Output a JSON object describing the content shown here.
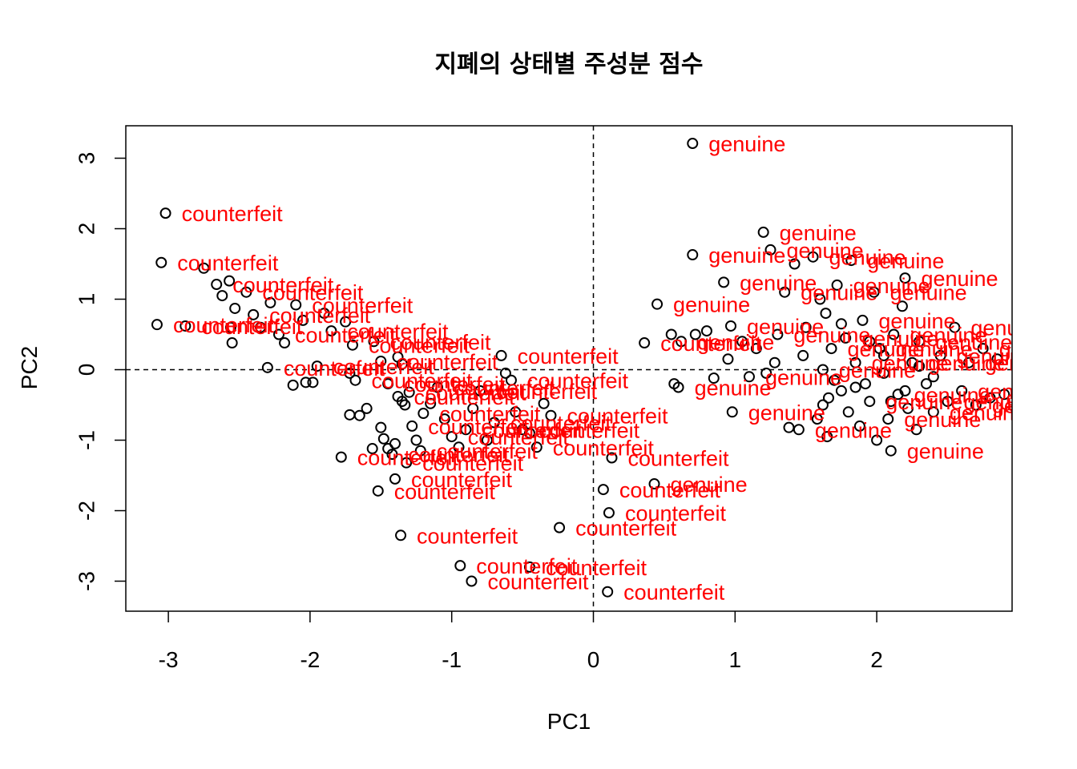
{
  "chart_data": {
    "type": "scatter",
    "title": "지폐의 상태별 주성분 점수",
    "xlabel": "PC1",
    "ylabel": "PC2",
    "xlim": [
      -3.3,
      2.95
    ],
    "ylim": [
      -3.45,
      3.45
    ],
    "xticks": [
      "-3",
      "-2",
      "-1",
      "0",
      "1",
      "2"
    ],
    "yticks": [
      "-3",
      "-2",
      "-1",
      "0",
      "1",
      "2",
      "3"
    ],
    "reference_lines": {
      "x": 0,
      "y": 0,
      "style": "dashed"
    },
    "label_color": "#ff0000",
    "point_color": "#000000",
    "series": [
      {
        "name": "counterfeit",
        "points": [
          [
            -3.02,
            2.22
          ],
          [
            -3.05,
            1.52
          ],
          [
            -3.08,
            0.64
          ],
          [
            -2.88,
            0.62
          ],
          [
            -2.75,
            1.44
          ],
          [
            -2.66,
            1.21
          ],
          [
            -2.62,
            1.05
          ],
          [
            -2.57,
            1.26
          ],
          [
            -2.53,
            0.87
          ],
          [
            -2.56,
            0.6
          ],
          [
            -2.55,
            0.38
          ],
          [
            -2.45,
            1.1
          ],
          [
            -2.4,
            0.78
          ],
          [
            -2.35,
            0.6
          ],
          [
            -2.3,
            0.03
          ],
          [
            -2.28,
            0.95
          ],
          [
            -2.22,
            0.5
          ],
          [
            -2.18,
            0.38
          ],
          [
            -2.1,
            0.92
          ],
          [
            -2.05,
            0.7
          ],
          [
            -2.12,
            -0.22
          ],
          [
            -2.03,
            -0.18
          ],
          [
            -1.98,
            -0.18
          ],
          [
            -1.95,
            0.05
          ],
          [
            -1.9,
            0.8
          ],
          [
            -1.85,
            0.55
          ],
          [
            -1.75,
            0.68
          ],
          [
            -1.7,
            0.35
          ],
          [
            -1.72,
            -0.05
          ],
          [
            -1.68,
            -0.15
          ],
          [
            -1.72,
            -0.64
          ],
          [
            -1.65,
            -0.65
          ],
          [
            -1.6,
            -0.55
          ],
          [
            -1.55,
            0.4
          ],
          [
            -1.5,
            0.12
          ],
          [
            -1.45,
            -0.2
          ],
          [
            -1.5,
            -0.82
          ],
          [
            -1.48,
            -0.98
          ],
          [
            -1.45,
            -1.12
          ],
          [
            -1.42,
            -1.2
          ],
          [
            -1.4,
            -1.05
          ],
          [
            -1.38,
            -0.38
          ],
          [
            -1.35,
            -0.45
          ],
          [
            -1.33,
            -0.5
          ],
          [
            -1.3,
            -0.32
          ],
          [
            -1.28,
            -0.8
          ],
          [
            -1.25,
            -1.0
          ],
          [
            -1.22,
            -1.15
          ],
          [
            -1.2,
            -0.62
          ],
          [
            -1.15,
            -0.48
          ],
          [
            -1.1,
            -0.25
          ],
          [
            -1.05,
            -0.7
          ],
          [
            -1.0,
            -0.95
          ],
          [
            -0.95,
            -1.1
          ],
          [
            -0.9,
            -0.85
          ],
          [
            -0.85,
            -0.55
          ],
          [
            -0.8,
            -0.3
          ],
          [
            -0.75,
            -1.0
          ],
          [
            -0.7,
            -0.75
          ],
          [
            -0.65,
            0.2
          ],
          [
            -0.62,
            -0.05
          ],
          [
            -0.58,
            -0.15
          ],
          [
            -0.55,
            -0.6
          ],
          [
            -0.5,
            -0.85
          ],
          [
            -0.45,
            -0.9
          ],
          [
            -0.4,
            -1.1
          ],
          [
            -0.35,
            -0.48
          ],
          [
            -0.3,
            -0.65
          ],
          [
            -1.38,
            0.18
          ],
          [
            -1.35,
            0.08
          ],
          [
            -1.78,
            -1.24
          ],
          [
            -1.56,
            -1.12
          ],
          [
            -1.52,
            -1.72
          ],
          [
            -1.4,
            -1.55
          ],
          [
            -1.32,
            -1.32
          ],
          [
            -1.36,
            -2.35
          ],
          [
            -0.94,
            -2.78
          ],
          [
            -0.86,
            -3.0
          ],
          [
            -0.45,
            -2.8
          ],
          [
            -0.24,
            -2.24
          ],
          [
            0.07,
            -1.7
          ],
          [
            0.11,
            -2.03
          ],
          [
            0.13,
            -1.25
          ],
          [
            0.1,
            -3.15
          ],
          [
            0.36,
            0.38
          ]
        ],
        "labeled_points": [
          [
            -3.02,
            2.22
          ],
          [
            -3.05,
            1.52
          ],
          [
            -3.08,
            0.64
          ],
          [
            -2.88,
            0.62
          ],
          [
            -2.66,
            1.21
          ],
          [
            -2.45,
            1.1
          ],
          [
            -2.4,
            0.78
          ],
          [
            -2.22,
            0.5
          ],
          [
            -2.1,
            0.92
          ],
          [
            -1.95,
            0.05
          ],
          [
            -1.85,
            0.55
          ],
          [
            -1.7,
            0.35
          ],
          [
            -1.68,
            -0.15
          ],
          [
            -1.5,
            0.12
          ],
          [
            -1.45,
            -0.2
          ],
          [
            -1.42,
            -1.2
          ],
          [
            -1.38,
            -0.38
          ],
          [
            -1.3,
            -0.32
          ],
          [
            -1.28,
            -0.8
          ],
          [
            -1.22,
            -1.15
          ],
          [
            -1.2,
            -0.62
          ],
          [
            -1.1,
            -0.25
          ],
          [
            -1.0,
            -0.95
          ],
          [
            -0.9,
            -0.85
          ],
          [
            -0.8,
            -0.3
          ],
          [
            -0.7,
            -0.75
          ],
          [
            -0.65,
            0.2
          ],
          [
            -0.58,
            -0.15
          ],
          [
            -0.5,
            -0.85
          ],
          [
            -0.4,
            -1.1
          ],
          [
            -0.3,
            -0.65
          ],
          [
            -1.78,
            -1.24
          ],
          [
            -1.52,
            -1.72
          ],
          [
            -1.4,
            -1.55
          ],
          [
            -1.32,
            -1.32
          ],
          [
            -1.36,
            -2.35
          ],
          [
            -0.94,
            -2.78
          ],
          [
            -0.86,
            -3.0
          ],
          [
            -0.45,
            -2.8
          ],
          [
            -0.24,
            -2.24
          ],
          [
            0.07,
            -1.7
          ],
          [
            0.11,
            -2.03
          ],
          [
            0.13,
            -1.25
          ],
          [
            0.1,
            -3.15
          ],
          [
            0.36,
            0.38
          ],
          [
            -1.55,
            0.4
          ],
          [
            -2.3,
            0.03
          ]
        ]
      },
      {
        "name": "genuine",
        "points": [
          [
            0.7,
            3.21
          ],
          [
            0.7,
            1.63
          ],
          [
            0.45,
            0.93
          ],
          [
            0.55,
            0.5
          ],
          [
            0.62,
            0.4
          ],
          [
            0.6,
            -0.25
          ],
          [
            0.57,
            -0.2
          ],
          [
            0.72,
            0.5
          ],
          [
            0.8,
            0.55
          ],
          [
            0.85,
            -0.12
          ],
          [
            0.92,
            1.24
          ],
          [
            0.95,
            0.15
          ],
          [
            0.97,
            0.62
          ],
          [
            0.98,
            -0.6
          ],
          [
            1.05,
            0.4
          ],
          [
            1.1,
            -0.1
          ],
          [
            1.15,
            0.3
          ],
          [
            1.2,
            1.95
          ],
          [
            1.25,
            1.7
          ],
          [
            1.22,
            -0.05
          ],
          [
            1.28,
            0.1
          ],
          [
            1.3,
            0.5
          ],
          [
            1.35,
            1.1
          ],
          [
            1.38,
            -0.82
          ],
          [
            1.42,
            1.5
          ],
          [
            1.45,
            -0.85
          ],
          [
            1.48,
            0.2
          ],
          [
            1.5,
            0.6
          ],
          [
            1.55,
            1.6
          ],
          [
            1.58,
            -0.7
          ],
          [
            1.6,
            1.0
          ],
          [
            1.62,
            -0.5
          ],
          [
            1.62,
            0.0
          ],
          [
            1.64,
            0.8
          ],
          [
            1.65,
            -0.95
          ],
          [
            1.66,
            -0.4
          ],
          [
            1.68,
            0.3
          ],
          [
            1.7,
            -0.15
          ],
          [
            1.72,
            1.2
          ],
          [
            1.75,
            -0.3
          ],
          [
            1.78,
            0.45
          ],
          [
            1.8,
            -0.6
          ],
          [
            1.82,
            1.55
          ],
          [
            1.85,
            0.1
          ],
          [
            1.88,
            -0.8
          ],
          [
            1.9,
            0.7
          ],
          [
            1.92,
            -0.2
          ],
          [
            1.95,
            -0.45
          ],
          [
            1.98,
            1.1
          ],
          [
            2.0,
            -1.0
          ],
          [
            2.02,
            0.3
          ],
          [
            2.05,
            -0.05
          ],
          [
            2.08,
            -0.7
          ],
          [
            2.1,
            -1.15
          ],
          [
            2.12,
            0.5
          ],
          [
            2.15,
            -0.35
          ],
          [
            2.18,
            0.9
          ],
          [
            2.2,
            1.3
          ],
          [
            2.22,
            -0.55
          ],
          [
            2.25,
            0.1
          ],
          [
            2.28,
            -0.85
          ],
          [
            2.3,
            0.4
          ],
          [
            2.35,
            -0.2
          ],
          [
            2.4,
            -0.6
          ],
          [
            2.45,
            0.2
          ],
          [
            2.5,
            -0.45
          ],
          [
            2.55,
            0.6
          ],
          [
            2.6,
            -0.3
          ],
          [
            2.65,
            0.1
          ],
          [
            2.7,
            -0.5
          ],
          [
            2.75,
            0.3
          ],
          [
            2.8,
            -0.4
          ],
          [
            2.85,
            0.15
          ],
          [
            2.9,
            -0.35
          ],
          [
            2.4,
            -0.1
          ],
          [
            2.3,
            0.05
          ],
          [
            2.2,
            -0.3
          ],
          [
            2.1,
            -0.45
          ],
          [
            2.05,
            0.2
          ],
          [
            1.95,
            0.4
          ],
          [
            1.85,
            -0.25
          ],
          [
            1.75,
            0.65
          ],
          [
            0.43,
            -1.62
          ]
        ],
        "labeled_points": [
          [
            0.7,
            3.21
          ],
          [
            0.7,
            1.63
          ],
          [
            0.45,
            0.93
          ],
          [
            0.62,
            0.4
          ],
          [
            0.6,
            -0.25
          ],
          [
            0.97,
            0.62
          ],
          [
            0.98,
            -0.6
          ],
          [
            0.92,
            1.24
          ],
          [
            1.2,
            1.95
          ],
          [
            1.25,
            1.7
          ],
          [
            1.35,
            1.1
          ],
          [
            1.45,
            -0.85
          ],
          [
            1.55,
            1.6
          ],
          [
            1.62,
            0.0
          ],
          [
            1.68,
            0.3
          ],
          [
            1.72,
            1.2
          ],
          [
            1.78,
            0.45
          ],
          [
            1.82,
            1.55
          ],
          [
            1.85,
            0.1
          ],
          [
            1.9,
            0.7
          ],
          [
            1.95,
            -0.45
          ],
          [
            1.98,
            1.1
          ],
          [
            2.02,
            0.3
          ],
          [
            2.08,
            -0.7
          ],
          [
            2.1,
            -1.15
          ],
          [
            2.12,
            0.5
          ],
          [
            2.15,
            -0.35
          ],
          [
            2.2,
            1.3
          ],
          [
            2.25,
            0.1
          ],
          [
            2.3,
            0.4
          ],
          [
            2.4,
            -0.6
          ],
          [
            2.45,
            0.2
          ],
          [
            2.5,
            -0.45
          ],
          [
            2.55,
            0.6
          ],
          [
            2.6,
            -0.3
          ],
          [
            2.65,
            0.1
          ],
          [
            2.7,
            -0.5
          ],
          [
            2.75,
            0.3
          ],
          [
            2.8,
            -0.4
          ],
          [
            2.85,
            0.15
          ],
          [
            1.3,
            0.5
          ],
          [
            1.1,
            -0.1
          ],
          [
            0.43,
            -1.62
          ]
        ]
      }
    ]
  }
}
